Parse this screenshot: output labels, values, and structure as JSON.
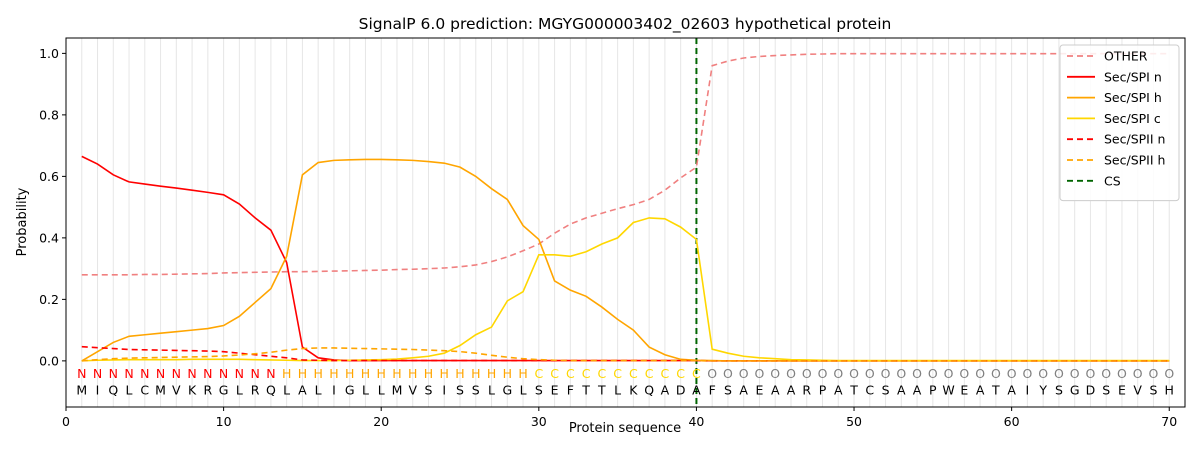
{
  "chart_data": {
    "type": "line",
    "title": "SignalP 6.0 prediction: MGYG000003402_02603 hypothetical protein",
    "xlabel": "Protein sequence",
    "ylabel": "Probability",
    "xlim": [
      0,
      71
    ],
    "ylim": [
      -0.15,
      1.05
    ],
    "x_ticks": [
      0,
      10,
      20,
      30,
      40,
      50,
      60,
      70
    ],
    "y_ticks": [
      0.0,
      0.2,
      0.4,
      0.6,
      0.8,
      1.0
    ],
    "y_tick_labels": [
      "0.0",
      "0.2",
      "0.4",
      "0.6",
      "0.8",
      "1.0"
    ],
    "legend_position": "top-right",
    "grid": "vertical lines at each residue",
    "residues": [
      "M",
      "I",
      "Q",
      "L",
      "C",
      "M",
      "V",
      "K",
      "R",
      "G",
      "L",
      "R",
      "Q",
      "L",
      "A",
      "L",
      "I",
      "G",
      "L",
      "L",
      "M",
      "V",
      "S",
      "I",
      "S",
      "S",
      "L",
      "G",
      "L",
      "S",
      "E",
      "F",
      "T",
      "T",
      "L",
      "K",
      "Q",
      "A",
      "D",
      "A",
      "F",
      "S",
      "A",
      "E",
      "A",
      "A",
      "R",
      "P",
      "A",
      "T",
      "C",
      "S",
      "A",
      "A",
      "P",
      "W",
      "E",
      "A",
      "T",
      "A",
      "I",
      "Y",
      "S",
      "G",
      "D",
      "S",
      "E",
      "V",
      "S",
      "H"
    ],
    "region_labels": [
      "N",
      "N",
      "N",
      "N",
      "N",
      "N",
      "N",
      "N",
      "N",
      "N",
      "N",
      "N",
      "N",
      "H",
      "H",
      "H",
      "H",
      "H",
      "H",
      "H",
      "H",
      "H",
      "H",
      "H",
      "H",
      "H",
      "H",
      "H",
      "H",
      "C",
      "C",
      "C",
      "C",
      "C",
      "C",
      "C",
      "C",
      "C",
      "C",
      "C",
      "O",
      "O",
      "O",
      "O",
      "O",
      "O",
      "O",
      "O",
      "O",
      "O",
      "O",
      "O",
      "O",
      "O",
      "O",
      "O",
      "O",
      "O",
      "O",
      "O",
      "O",
      "O",
      "O",
      "O",
      "O",
      "O",
      "O",
      "O",
      "O",
      "O"
    ],
    "region_colors": {
      "N": "#ff0000",
      "H": "#ffa500",
      "C": "#ffd700",
      "O": "#808080"
    },
    "cleavage_site": 40,
    "series": [
      {
        "name": "OTHER",
        "color": "#f08080",
        "dash": "6,4",
        "values": [
          0.28,
          0.28,
          0.28,
          0.28,
          0.281,
          0.281,
          0.282,
          0.283,
          0.284,
          0.286,
          0.287,
          0.288,
          0.289,
          0.29,
          0.29,
          0.291,
          0.292,
          0.293,
          0.294,
          0.295,
          0.297,
          0.298,
          0.3,
          0.302,
          0.306,
          0.312,
          0.323,
          0.338,
          0.358,
          0.38,
          0.415,
          0.445,
          0.465,
          0.48,
          0.495,
          0.508,
          0.525,
          0.555,
          0.595,
          0.63,
          0.96,
          0.975,
          0.985,
          0.99,
          0.993,
          0.995,
          0.997,
          0.998,
          0.999,
          0.999,
          0.999,
          0.999,
          0.999,
          0.999,
          0.999,
          0.999,
          0.999,
          0.999,
          0.999,
          0.999,
          0.999,
          0.999,
          0.999,
          0.999,
          0.999,
          0.999,
          0.999,
          0.999,
          0.999,
          0.999
        ]
      },
      {
        "name": "Sec/SPI n",
        "color": "#ff0000",
        "dash": "",
        "values": [
          0.665,
          0.64,
          0.605,
          0.582,
          0.575,
          0.568,
          0.562,
          0.555,
          0.548,
          0.54,
          0.51,
          0.465,
          0.425,
          0.32,
          0.045,
          0.01,
          0.003,
          0.001,
          0.001,
          0.001,
          0.001,
          0.001,
          0.001,
          0.001,
          0.001,
          0.001,
          0.001,
          0.001,
          0.001,
          0.001,
          0.001,
          0.001,
          0.001,
          0.001,
          0.001,
          0.001,
          0.001,
          0.001,
          0.001,
          0.001,
          0.0,
          0.0,
          0.0,
          0.0,
          0.0,
          0.0,
          0.0,
          0.0,
          0.0,
          0.0,
          0.0,
          0.0,
          0.0,
          0.0,
          0.0,
          0.0,
          0.0,
          0.0,
          0.0,
          0.0,
          0.0,
          0.0,
          0.0,
          0.0,
          0.0,
          0.0,
          0.0,
          0.0,
          0.0,
          0.0
        ]
      },
      {
        "name": "Sec/SPI h",
        "color": "#ffa500",
        "dash": "",
        "values": [
          0.0,
          0.03,
          0.06,
          0.08,
          0.085,
          0.09,
          0.095,
          0.1,
          0.105,
          0.115,
          0.145,
          0.19,
          0.235,
          0.34,
          0.605,
          0.645,
          0.652,
          0.654,
          0.655,
          0.655,
          0.654,
          0.652,
          0.648,
          0.643,
          0.63,
          0.6,
          0.56,
          0.525,
          0.44,
          0.395,
          0.26,
          0.23,
          0.21,
          0.175,
          0.135,
          0.1,
          0.045,
          0.02,
          0.005,
          0.002,
          0.001,
          0.0,
          0.0,
          0.0,
          0.0,
          0.0,
          0.0,
          0.0,
          0.0,
          0.0,
          0.0,
          0.0,
          0.0,
          0.0,
          0.0,
          0.0,
          0.0,
          0.0,
          0.0,
          0.0,
          0.0,
          0.0,
          0.0,
          0.0,
          0.0,
          0.0,
          0.0,
          0.0,
          0.0,
          0.0
        ]
      },
      {
        "name": "Sec/SPI c",
        "color": "#ffd700",
        "dash": "",
        "values": [
          0.0,
          0.002,
          0.003,
          0.004,
          0.004,
          0.004,
          0.004,
          0.005,
          0.005,
          0.005,
          0.005,
          0.004,
          0.003,
          0.002,
          0.001,
          0.001,
          0.001,
          0.002,
          0.003,
          0.004,
          0.006,
          0.01,
          0.015,
          0.025,
          0.05,
          0.085,
          0.11,
          0.195,
          0.225,
          0.345,
          0.345,
          0.34,
          0.355,
          0.38,
          0.4,
          0.45,
          0.465,
          0.462,
          0.435,
          0.395,
          0.038,
          0.025,
          0.015,
          0.01,
          0.007,
          0.004,
          0.003,
          0.002,
          0.001,
          0.001,
          0.001,
          0.001,
          0.001,
          0.001,
          0.001,
          0.001,
          0.001,
          0.001,
          0.001,
          0.001,
          0.001,
          0.001,
          0.001,
          0.001,
          0.001,
          0.001,
          0.001,
          0.001,
          0.001,
          0.001
        ]
      },
      {
        "name": "Sec/SPII n",
        "color": "#ff0000",
        "dash": "6,4",
        "values": [
          0.046,
          0.043,
          0.04,
          0.037,
          0.036,
          0.035,
          0.034,
          0.033,
          0.032,
          0.03,
          0.025,
          0.02,
          0.015,
          0.01,
          0.003,
          0.002,
          0.001,
          0.001,
          0.001,
          0.001,
          0.001,
          0.001,
          0.001,
          0.001,
          0.001,
          0.001,
          0.001,
          0.001,
          0.001,
          0.001,
          0.001,
          0.001,
          0.001,
          0.001,
          0.001,
          0.001,
          0.001,
          0.001,
          0.001,
          0.001,
          0.0,
          0.0,
          0.0,
          0.0,
          0.0,
          0.0,
          0.0,
          0.0,
          0.0,
          0.0,
          0.0,
          0.0,
          0.0,
          0.0,
          0.0,
          0.0,
          0.0,
          0.0,
          0.0,
          0.0,
          0.0,
          0.0,
          0.0,
          0.0,
          0.0,
          0.0,
          0.0,
          0.0,
          0.0,
          0.0
        ]
      },
      {
        "name": "Sec/SPII h",
        "color": "#ffa500",
        "dash": "6,4",
        "values": [
          0.0,
          0.004,
          0.007,
          0.009,
          0.01,
          0.011,
          0.012,
          0.013,
          0.014,
          0.016,
          0.019,
          0.023,
          0.028,
          0.035,
          0.04,
          0.042,
          0.042,
          0.041,
          0.04,
          0.039,
          0.038,
          0.037,
          0.035,
          0.033,
          0.03,
          0.025,
          0.018,
          0.012,
          0.007,
          0.004,
          0.002,
          0.001,
          0.001,
          0.001,
          0.001,
          0.001,
          0.001,
          0.001,
          0.001,
          0.001,
          0.0,
          0.0,
          0.0,
          0.0,
          0.0,
          0.0,
          0.0,
          0.0,
          0.0,
          0.0,
          0.0,
          0.0,
          0.0,
          0.0,
          0.0,
          0.0,
          0.0,
          0.0,
          0.0,
          0.0,
          0.0,
          0.0,
          0.0,
          0.0,
          0.0,
          0.0,
          0.0,
          0.0,
          0.0,
          0.0
        ]
      }
    ],
    "cs_legend": {
      "name": "CS",
      "color": "#006400",
      "dash": "6,4"
    }
  }
}
